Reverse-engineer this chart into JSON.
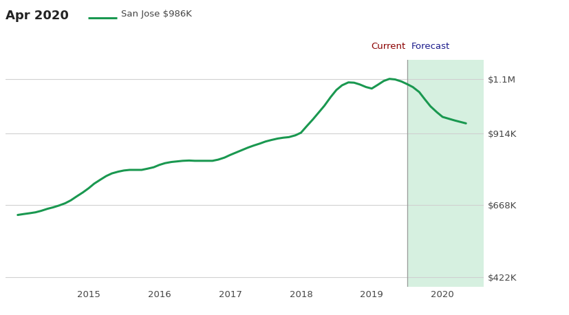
{
  "title_date": "Apr 2020",
  "legend_label": "San Jose $986K",
  "line_color": "#1a9850",
  "forecast_bg_color": "#d6f0e0",
  "current_label": "Current",
  "forecast_label": "Forecast",
  "current_label_color": "#8B0000",
  "forecast_label_color": "#1a1a8B",
  "ytick_labels": [
    "$422K",
    "$668K",
    "$914K",
    "$1.1M"
  ],
  "ytick_values": [
    422000,
    668000,
    914000,
    1100000
  ],
  "ylim": [
    390000,
    1165000
  ],
  "xlim_start": 2013.83,
  "xlim_end": 2020.58,
  "forecast_start_x": 2019.5,
  "xtick_positions": [
    2015,
    2016,
    2017,
    2018,
    2019,
    2020
  ],
  "xtick_labels": [
    "2015",
    "2016",
    "2017",
    "2018",
    "2019",
    "2020"
  ],
  "x_data": [
    2014.0,
    2014.08,
    2014.17,
    2014.25,
    2014.33,
    2014.42,
    2014.5,
    2014.58,
    2014.67,
    2014.75,
    2014.83,
    2014.92,
    2015.0,
    2015.08,
    2015.17,
    2015.25,
    2015.33,
    2015.42,
    2015.5,
    2015.58,
    2015.67,
    2015.75,
    2015.83,
    2015.92,
    2016.0,
    2016.08,
    2016.17,
    2016.25,
    2016.33,
    2016.42,
    2016.5,
    2016.58,
    2016.67,
    2016.75,
    2016.83,
    2016.92,
    2017.0,
    2017.08,
    2017.17,
    2017.25,
    2017.33,
    2017.42,
    2017.5,
    2017.58,
    2017.67,
    2017.75,
    2017.83,
    2017.92,
    2018.0,
    2018.08,
    2018.17,
    2018.25,
    2018.33,
    2018.42,
    2018.5,
    2018.58,
    2018.67,
    2018.75,
    2018.83,
    2018.92,
    2019.0,
    2019.08,
    2019.17,
    2019.25,
    2019.33,
    2019.42,
    2019.5,
    2019.58,
    2019.67,
    2019.75,
    2019.83,
    2019.92,
    2020.0,
    2020.17,
    2020.33
  ],
  "y_data": [
    635000,
    638000,
    641000,
    644000,
    649000,
    656000,
    661000,
    667000,
    675000,
    685000,
    698000,
    712000,
    726000,
    742000,
    756000,
    768000,
    777000,
    783000,
    787000,
    789000,
    789000,
    789000,
    793000,
    798000,
    806000,
    812000,
    816000,
    818000,
    820000,
    821000,
    820000,
    820000,
    820000,
    820000,
    824000,
    831000,
    840000,
    848000,
    857000,
    865000,
    872000,
    879000,
    886000,
    891000,
    896000,
    899000,
    901000,
    907000,
    916000,
    938000,
    962000,
    985000,
    1008000,
    1038000,
    1062000,
    1078000,
    1088000,
    1087000,
    1081000,
    1072000,
    1067000,
    1079000,
    1093000,
    1100000,
    1098000,
    1091000,
    1082000,
    1072000,
    1055000,
    1030000,
    1006000,
    986000,
    970000,
    958000,
    948000
  ],
  "bg_color": "#ffffff",
  "grid_color": "#d0d0d0",
  "vline_color": "#999999"
}
